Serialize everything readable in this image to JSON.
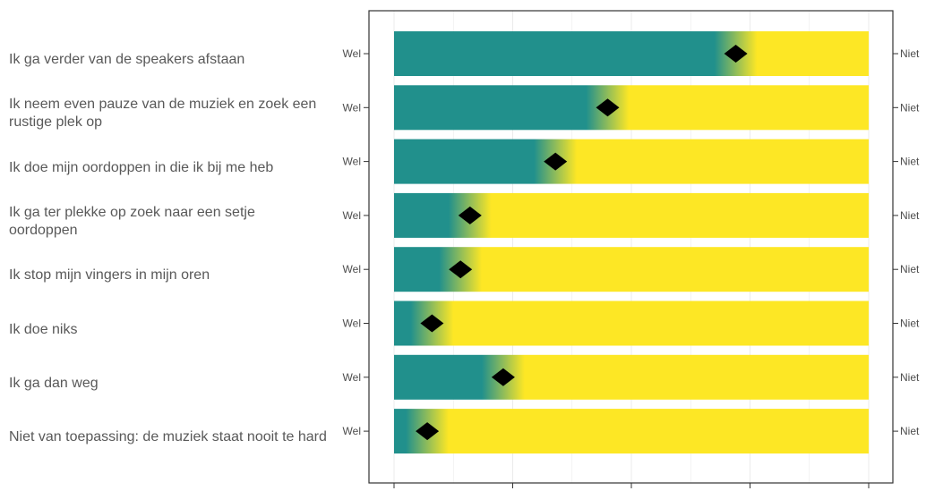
{
  "chart_data": {
    "type": "bar",
    "stacked_percent": true,
    "categories": [
      "Ik ga verder van de speakers afstaan",
      "Ik neem even pauze van de muziek en zoek een rustige plek op",
      "Ik doe mijn oordoppen in die ik bij me heb",
      "Ik ga ter plekke op zoek naar een setje oordoppen",
      "Ik stop mijn vingers in mijn oren",
      "Ik doe niks",
      "Ik ga dan weg",
      "Niet van toepassing: de muziek staat nooit te hard"
    ],
    "left_label": "Wel",
    "right_label": "Niet",
    "series": [
      {
        "values": [
          72,
          45,
          34,
          16,
          14,
          8,
          23,
          7
        ]
      }
    ],
    "xlim": [
      0,
      100
    ],
    "xticks": [
      0,
      25,
      50,
      75,
      100
    ],
    "colors": {
      "wel": "#21908c",
      "niet": "#fde725",
      "marker": "#000000",
      "panel_border": "#333333",
      "grid": "#ebebeb"
    },
    "grid": true,
    "legend": "none"
  }
}
